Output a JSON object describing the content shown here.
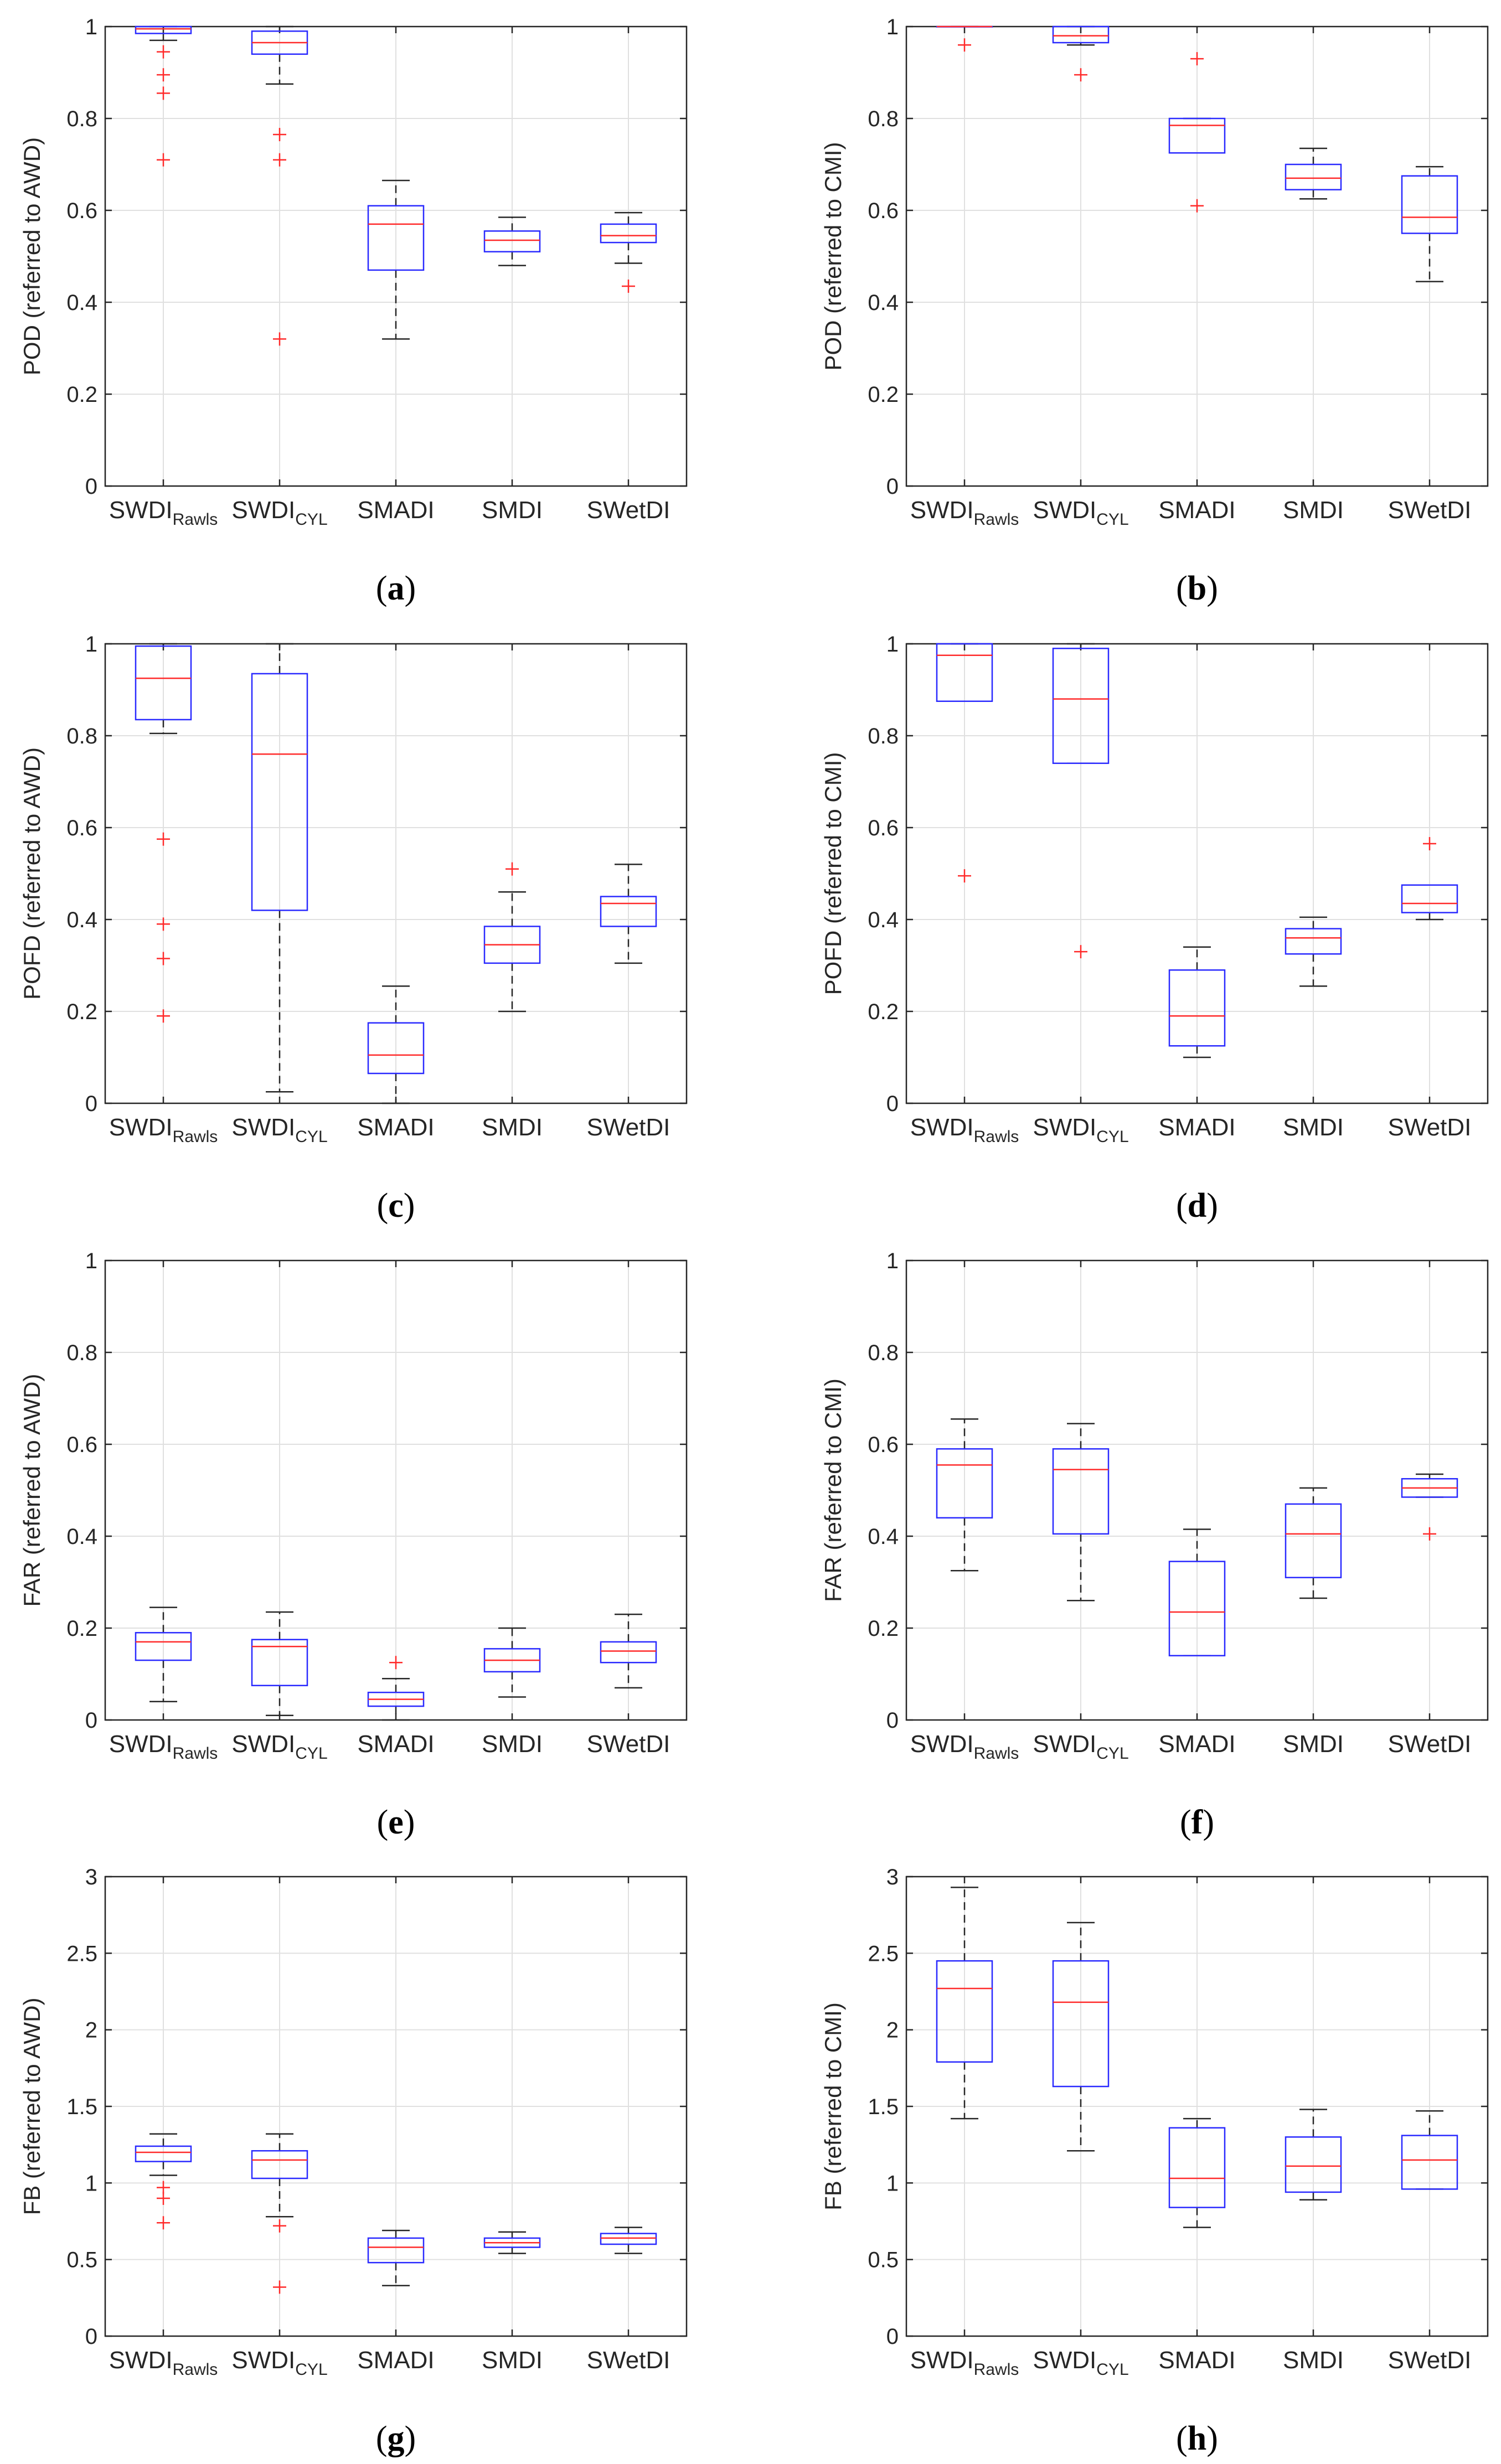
{
  "chart_data": [
    {
      "panel": "(a)",
      "caption_letter": "a",
      "type": "boxplot",
      "ylabel": "POD (referred to AWD)",
      "ylim": [
        0,
        1
      ],
      "yticks": [
        "0",
        "0.2",
        "0.4",
        "0.6",
        "0.8",
        "1"
      ],
      "ytick_values": [
        0,
        0.2,
        0.4,
        0.6,
        0.8,
        1
      ],
      "categories": [
        {
          "main": "SWDI",
          "sub": "Rawls"
        },
        {
          "main": "SWDI",
          "sub": "CYL"
        },
        {
          "main": "SMADI",
          "sub": ""
        },
        {
          "main": "SMDI",
          "sub": ""
        },
        {
          "main": "SWetDI",
          "sub": ""
        }
      ],
      "boxes": [
        {
          "whisker_low": 0.97,
          "q1": 0.985,
          "median": 0.995,
          "q3": 1.0,
          "whisker_high": 1.0,
          "outliers": [
            0.945,
            0.895,
            0.855,
            0.71
          ]
        },
        {
          "whisker_low": 0.875,
          "q1": 0.94,
          "median": 0.965,
          "q3": 0.99,
          "whisker_high": 1.0,
          "outliers": [
            0.765,
            0.71,
            0.32
          ]
        },
        {
          "whisker_low": 0.32,
          "q1": 0.47,
          "median": 0.57,
          "q3": 0.61,
          "whisker_high": 0.665,
          "outliers": []
        },
        {
          "whisker_low": 0.48,
          "q1": 0.51,
          "median": 0.535,
          "q3": 0.555,
          "whisker_high": 0.585,
          "outliers": []
        },
        {
          "whisker_low": 0.485,
          "q1": 0.53,
          "median": 0.545,
          "q3": 0.57,
          "whisker_high": 0.595,
          "outliers": [
            0.435
          ]
        }
      ]
    },
    {
      "panel": "(b)",
      "caption_letter": "b",
      "type": "boxplot",
      "ylabel": "POD (referred to CMI)",
      "ylim": [
        0,
        1
      ],
      "yticks": [
        "0",
        "0.2",
        "0.4",
        "0.6",
        "0.8",
        "1"
      ],
      "ytick_values": [
        0,
        0.2,
        0.4,
        0.6,
        0.8,
        1
      ],
      "categories": [
        {
          "main": "SWDI",
          "sub": "Rawls"
        },
        {
          "main": "SWDI",
          "sub": "CYL"
        },
        {
          "main": "SMADI",
          "sub": ""
        },
        {
          "main": "SMDI",
          "sub": ""
        },
        {
          "main": "SWetDI",
          "sub": ""
        }
      ],
      "boxes": [
        {
          "whisker_low": 1.0,
          "q1": 1.0,
          "median": 1.0,
          "q3": 1.0,
          "whisker_high": 1.0,
          "outliers": [
            0.96
          ]
        },
        {
          "whisker_low": 0.96,
          "q1": 0.965,
          "median": 0.98,
          "q3": 1.0,
          "whisker_high": 1.0,
          "outliers": [
            0.895
          ]
        },
        {
          "whisker_low": 0.725,
          "q1": 0.725,
          "median": 0.785,
          "q3": 0.8,
          "whisker_high": 0.8,
          "outliers": [
            0.93,
            0.61
          ]
        },
        {
          "whisker_low": 0.625,
          "q1": 0.645,
          "median": 0.67,
          "q3": 0.7,
          "whisker_high": 0.735,
          "outliers": []
        },
        {
          "whisker_low": 0.445,
          "q1": 0.55,
          "median": 0.585,
          "q3": 0.675,
          "whisker_high": 0.695,
          "outliers": []
        }
      ]
    },
    {
      "panel": "(c)",
      "caption_letter": "c",
      "type": "boxplot",
      "ylabel": "POFD (referred to AWD)",
      "ylim": [
        0,
        1
      ],
      "yticks": [
        "0",
        "0.2",
        "0.4",
        "0.6",
        "0.8",
        "1"
      ],
      "ytick_values": [
        0,
        0.2,
        0.4,
        0.6,
        0.8,
        1
      ],
      "categories": [
        {
          "main": "SWDI",
          "sub": "Rawls"
        },
        {
          "main": "SWDI",
          "sub": "CYL"
        },
        {
          "main": "SMADI",
          "sub": ""
        },
        {
          "main": "SMDI",
          "sub": ""
        },
        {
          "main": "SWetDI",
          "sub": ""
        }
      ],
      "boxes": [
        {
          "whisker_low": 0.805,
          "q1": 0.835,
          "median": 0.925,
          "q3": 0.995,
          "whisker_high": 1.0,
          "outliers": [
            0.575,
            0.39,
            0.315,
            0.19
          ]
        },
        {
          "whisker_low": 0.025,
          "q1": 0.42,
          "median": 0.76,
          "q3": 0.935,
          "whisker_high": 1.0,
          "outliers": []
        },
        {
          "whisker_low": 0.0,
          "q1": 0.065,
          "median": 0.105,
          "q3": 0.175,
          "whisker_high": 0.255,
          "outliers": []
        },
        {
          "whisker_low": 0.2,
          "q1": 0.305,
          "median": 0.345,
          "q3": 0.385,
          "whisker_high": 0.46,
          "outliers": [
            0.51
          ]
        },
        {
          "whisker_low": 0.305,
          "q1": 0.385,
          "median": 0.435,
          "q3": 0.45,
          "whisker_high": 0.52,
          "outliers": []
        }
      ]
    },
    {
      "panel": "(d)",
      "caption_letter": "d",
      "type": "boxplot",
      "ylabel": "POFD (referred to CMI)",
      "ylim": [
        0,
        1
      ],
      "yticks": [
        "0",
        "0.2",
        "0.4",
        "0.6",
        "0.8",
        "1"
      ],
      "ytick_values": [
        0,
        0.2,
        0.4,
        0.6,
        0.8,
        1
      ],
      "categories": [
        {
          "main": "SWDI",
          "sub": "Rawls"
        },
        {
          "main": "SWDI",
          "sub": "CYL"
        },
        {
          "main": "SMADI",
          "sub": ""
        },
        {
          "main": "SMDI",
          "sub": ""
        },
        {
          "main": "SWetDI",
          "sub": ""
        }
      ],
      "boxes": [
        {
          "whisker_low": 0.875,
          "q1": 0.875,
          "median": 0.975,
          "q3": 1.0,
          "whisker_high": 1.0,
          "outliers": [
            0.495
          ]
        },
        {
          "whisker_low": 0.74,
          "q1": 0.74,
          "median": 0.88,
          "q3": 0.99,
          "whisker_high": 1.0,
          "outliers": [
            0.33
          ]
        },
        {
          "whisker_low": 0.1,
          "q1": 0.125,
          "median": 0.19,
          "q3": 0.29,
          "whisker_high": 0.34,
          "outliers": []
        },
        {
          "whisker_low": 0.255,
          "q1": 0.325,
          "median": 0.36,
          "q3": 0.38,
          "whisker_high": 0.405,
          "outliers": []
        },
        {
          "whisker_low": 0.4,
          "q1": 0.415,
          "median": 0.435,
          "q3": 0.475,
          "whisker_high": 0.475,
          "outliers": [
            0.565
          ]
        }
      ]
    },
    {
      "panel": "(e)",
      "caption_letter": "e",
      "type": "boxplot",
      "ylabel": "FAR (referred to AWD)",
      "ylim": [
        0,
        1
      ],
      "yticks": [
        "0",
        "0.2",
        "0.4",
        "0.6",
        "0.8",
        "1"
      ],
      "ytick_values": [
        0,
        0.2,
        0.4,
        0.6,
        0.8,
        1
      ],
      "categories": [
        {
          "main": "SWDI",
          "sub": "Rawls"
        },
        {
          "main": "SWDI",
          "sub": "CYL"
        },
        {
          "main": "SMADI",
          "sub": ""
        },
        {
          "main": "SMDI",
          "sub": ""
        },
        {
          "main": "SWetDI",
          "sub": ""
        }
      ],
      "boxes": [
        {
          "whisker_low": 0.04,
          "q1": 0.13,
          "median": 0.17,
          "q3": 0.19,
          "whisker_high": 0.245,
          "outliers": []
        },
        {
          "whisker_low": 0.01,
          "q1": 0.075,
          "median": 0.16,
          "q3": 0.175,
          "whisker_high": 0.235,
          "outliers": []
        },
        {
          "whisker_low": 0.0,
          "q1": 0.03,
          "median": 0.045,
          "q3": 0.06,
          "whisker_high": 0.09,
          "outliers": [
            0.125
          ]
        },
        {
          "whisker_low": 0.05,
          "q1": 0.105,
          "median": 0.13,
          "q3": 0.155,
          "whisker_high": 0.2,
          "outliers": []
        },
        {
          "whisker_low": 0.07,
          "q1": 0.125,
          "median": 0.15,
          "q3": 0.17,
          "whisker_high": 0.23,
          "outliers": []
        }
      ]
    },
    {
      "panel": "(f)",
      "caption_letter": "f",
      "type": "boxplot",
      "ylabel": "FAR (referred to CMI)",
      "ylim": [
        0,
        1
      ],
      "yticks": [
        "0",
        "0.2",
        "0.4",
        "0.6",
        "0.8",
        "1"
      ],
      "ytick_values": [
        0,
        0.2,
        0.4,
        0.6,
        0.8,
        1
      ],
      "categories": [
        {
          "main": "SWDI",
          "sub": "Rawls"
        },
        {
          "main": "SWDI",
          "sub": "CYL"
        },
        {
          "main": "SMADI",
          "sub": ""
        },
        {
          "main": "SMDI",
          "sub": ""
        },
        {
          "main": "SWetDI",
          "sub": ""
        }
      ],
      "boxes": [
        {
          "whisker_low": 0.325,
          "q1": 0.44,
          "median": 0.555,
          "q3": 0.59,
          "whisker_high": 0.655,
          "outliers": []
        },
        {
          "whisker_low": 0.26,
          "q1": 0.405,
          "median": 0.545,
          "q3": 0.59,
          "whisker_high": 0.645,
          "outliers": []
        },
        {
          "whisker_low": 0.14,
          "q1": 0.14,
          "median": 0.235,
          "q3": 0.345,
          "whisker_high": 0.415,
          "outliers": []
        },
        {
          "whisker_low": 0.265,
          "q1": 0.31,
          "median": 0.405,
          "q3": 0.47,
          "whisker_high": 0.505,
          "outliers": []
        },
        {
          "whisker_low": 0.485,
          "q1": 0.485,
          "median": 0.505,
          "q3": 0.525,
          "whisker_high": 0.535,
          "outliers": [
            0.405
          ]
        }
      ]
    },
    {
      "panel": "(g)",
      "caption_letter": "g",
      "type": "boxplot",
      "ylabel": "FB (referred to AWD)",
      "ylim": [
        0,
        3
      ],
      "yticks": [
        "0",
        "0.5",
        "1",
        "1.5",
        "2",
        "2.5",
        "3"
      ],
      "ytick_values": [
        0,
        0.5,
        1,
        1.5,
        2,
        2.5,
        3
      ],
      "categories": [
        {
          "main": "SWDI",
          "sub": "Rawls"
        },
        {
          "main": "SWDI",
          "sub": "CYL"
        },
        {
          "main": "SMADI",
          "sub": ""
        },
        {
          "main": "SMDI",
          "sub": ""
        },
        {
          "main": "SWetDI",
          "sub": ""
        }
      ],
      "boxes": [
        {
          "whisker_low": 1.05,
          "q1": 1.14,
          "median": 1.2,
          "q3": 1.24,
          "whisker_high": 1.32,
          "outliers": [
            0.97,
            0.9,
            0.74
          ]
        },
        {
          "whisker_low": 0.78,
          "q1": 1.03,
          "median": 1.15,
          "q3": 1.21,
          "whisker_high": 1.32,
          "outliers": [
            0.72,
            0.32
          ]
        },
        {
          "whisker_low": 0.33,
          "q1": 0.48,
          "median": 0.58,
          "q3": 0.64,
          "whisker_high": 0.69,
          "outliers": []
        },
        {
          "whisker_low": 0.54,
          "q1": 0.58,
          "median": 0.61,
          "q3": 0.64,
          "whisker_high": 0.68,
          "outliers": []
        },
        {
          "whisker_low": 0.54,
          "q1": 0.6,
          "median": 0.64,
          "q3": 0.67,
          "whisker_high": 0.71,
          "outliers": []
        }
      ]
    },
    {
      "panel": "(h)",
      "caption_letter": "h",
      "type": "boxplot",
      "ylabel": "FB (referred to CMI)",
      "ylim": [
        0,
        3
      ],
      "yticks": [
        "0",
        "0.5",
        "1",
        "1.5",
        "2",
        "2.5",
        "3"
      ],
      "ytick_values": [
        0,
        0.5,
        1,
        1.5,
        2,
        2.5,
        3
      ],
      "categories": [
        {
          "main": "SWDI",
          "sub": "Rawls"
        },
        {
          "main": "SWDI",
          "sub": "CYL"
        },
        {
          "main": "SMADI",
          "sub": ""
        },
        {
          "main": "SMDI",
          "sub": ""
        },
        {
          "main": "SWetDI",
          "sub": ""
        }
      ],
      "boxes": [
        {
          "whisker_low": 1.42,
          "q1": 1.79,
          "median": 2.27,
          "q3": 2.45,
          "whisker_high": 2.93,
          "outliers": []
        },
        {
          "whisker_low": 1.21,
          "q1": 1.63,
          "median": 2.18,
          "q3": 2.45,
          "whisker_high": 2.7,
          "outliers": []
        },
        {
          "whisker_low": 0.71,
          "q1": 0.84,
          "median": 1.03,
          "q3": 1.36,
          "whisker_high": 1.42,
          "outliers": []
        },
        {
          "whisker_low": 0.89,
          "q1": 0.94,
          "median": 1.11,
          "q3": 1.3,
          "whisker_high": 1.48,
          "outliers": []
        },
        {
          "whisker_low": 0.96,
          "q1": 0.96,
          "median": 1.15,
          "q3": 1.31,
          "whisker_high": 1.47,
          "outliers": []
        }
      ]
    }
  ],
  "style": {
    "box_color": "#2a2aff",
    "median_color": "#ff2a2a",
    "whisker_color": "#262626",
    "outlier_color": "#ff2a2a",
    "grid_color": "#e0e0e0",
    "axis_color": "#262626"
  }
}
